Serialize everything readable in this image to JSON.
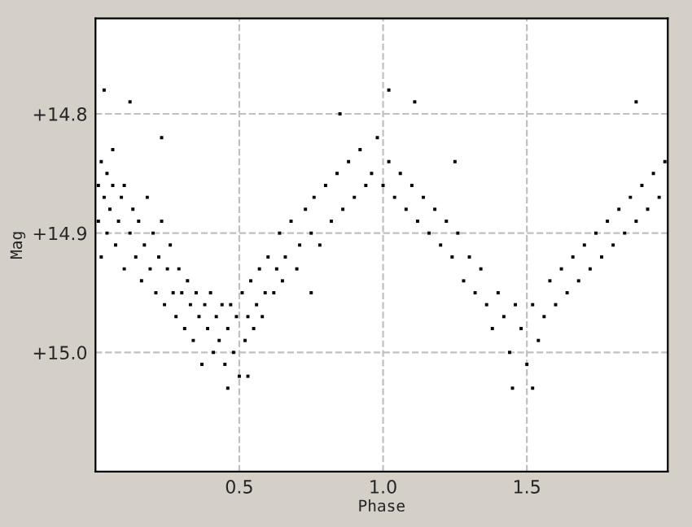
{
  "chart_data": {
    "type": "scatter",
    "xlabel": "Phase",
    "ylabel": "Mag",
    "xlim": [
      0,
      1.99
    ],
    "ylim": [
      15.1,
      14.72
    ],
    "xticks": [
      {
        "value": 0.5,
        "label": "0.5"
      },
      {
        "value": 1.0,
        "label": "1.0"
      },
      {
        "value": 1.5,
        "label": "1.5"
      }
    ],
    "yticks": [
      {
        "value": 14.8,
        "label": "+14.8"
      },
      {
        "value": 14.9,
        "label": "+14.9"
      },
      {
        "value": 15.0,
        "label": "+15.0"
      }
    ],
    "grid": true,
    "marker": "square",
    "series": [
      {
        "color": "#000000",
        "x": [
          0.01,
          0.01,
          0.02,
          0.02,
          0.03,
          0.04,
          0.04,
          0.05,
          0.06,
          0.06,
          0.07,
          0.08,
          0.09,
          0.1,
          0.1,
          0.12,
          0.13,
          0.14,
          0.15,
          0.16,
          0.17,
          0.18,
          0.19,
          0.2,
          0.21,
          0.22,
          0.23,
          0.24,
          0.25,
          0.26,
          0.27,
          0.28,
          0.29,
          0.3,
          0.31,
          0.32,
          0.33,
          0.34,
          0.35,
          0.36,
          0.37,
          0.38,
          0.39,
          0.4,
          0.41,
          0.42,
          0.43,
          0.44,
          0.45,
          0.46,
          0.47,
          0.48,
          0.49,
          0.5,
          0.51,
          0.52,
          0.53,
          0.54,
          0.55,
          0.56,
          0.57,
          0.58,
          0.59,
          0.6,
          0.62,
          0.63,
          0.64,
          0.65,
          0.66,
          0.68,
          0.7,
          0.71,
          0.73,
          0.75,
          0.76,
          0.78,
          0.8,
          0.82,
          0.84,
          0.86,
          0.88,
          0.9,
          0.92,
          0.94,
          0.96,
          0.98,
          1.0,
          1.02,
          1.04,
          1.06,
          1.08,
          1.1,
          1.12,
          1.14,
          1.16,
          1.18,
          1.2,
          1.22,
          1.24,
          1.26,
          1.28,
          1.3,
          1.32,
          1.34,
          1.36,
          1.38,
          1.4,
          1.42,
          1.44,
          1.46,
          1.48,
          1.5,
          1.52,
          1.54,
          1.56,
          1.58,
          1.6,
          1.62,
          1.64,
          1.66,
          1.68,
          1.7,
          1.72,
          1.74,
          1.76,
          1.78,
          1.8,
          1.82,
          1.84,
          1.86,
          1.88,
          1.9,
          1.92,
          1.94,
          1.96,
          1.98,
          0.03,
          0.12,
          0.23,
          0.46,
          0.53,
          0.85,
          1.02,
          1.11,
          1.45,
          1.52,
          1.88,
          0.75,
          1.25
        ],
        "values": [
          14.86,
          14.89,
          14.84,
          14.92,
          14.87,
          14.85,
          14.9,
          14.88,
          14.86,
          14.83,
          14.91,
          14.89,
          14.87,
          14.93,
          14.86,
          14.9,
          14.88,
          14.92,
          14.89,
          14.94,
          14.91,
          14.87,
          14.93,
          14.9,
          14.95,
          14.92,
          14.89,
          14.96,
          14.93,
          14.91,
          14.95,
          14.97,
          14.93,
          14.95,
          14.98,
          14.94,
          14.96,
          14.99,
          14.95,
          14.97,
          15.01,
          14.96,
          14.98,
          14.95,
          15.0,
          14.97,
          14.99,
          14.96,
          15.01,
          14.98,
          14.96,
          15.0,
          14.97,
          15.02,
          14.95,
          14.99,
          14.97,
          14.94,
          14.98,
          14.96,
          14.93,
          14.97,
          14.95,
          14.92,
          14.95,
          14.93,
          14.9,
          14.94,
          14.92,
          14.89,
          14.93,
          14.91,
          14.88,
          14.9,
          14.87,
          14.91,
          14.86,
          14.89,
          14.85,
          14.88,
          14.84,
          14.87,
          14.83,
          14.86,
          14.85,
          14.82,
          14.86,
          14.84,
          14.87,
          14.85,
          14.88,
          14.86,
          14.89,
          14.87,
          14.9,
          14.88,
          14.91,
          14.89,
          14.92,
          14.9,
          14.94,
          14.92,
          14.95,
          14.93,
          14.96,
          14.98,
          14.95,
          14.97,
          15.0,
          14.96,
          14.98,
          15.01,
          14.96,
          14.99,
          14.97,
          14.94,
          14.96,
          14.93,
          14.95,
          14.92,
          14.94,
          14.91,
          14.93,
          14.9,
          14.92,
          14.89,
          14.91,
          14.88,
          14.9,
          14.87,
          14.89,
          14.86,
          14.88,
          14.85,
          14.87,
          14.84,
          14.78,
          14.79,
          14.82,
          15.03,
          15.02,
          14.8,
          14.78,
          14.79,
          15.03,
          15.03,
          14.79,
          14.95,
          14.84
        ]
      }
    ]
  }
}
